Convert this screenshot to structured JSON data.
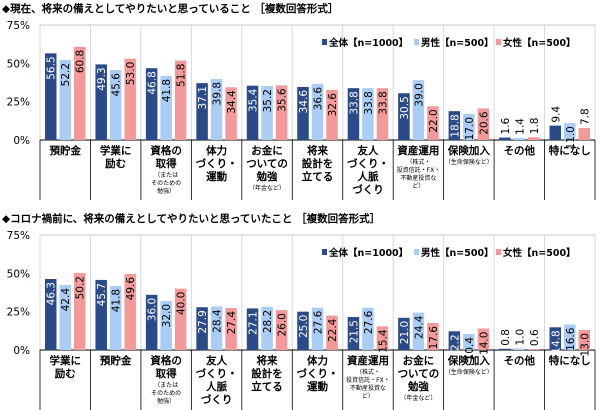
{
  "colors": {
    "全体": "#2a4a8a",
    "男性": "#a9cdf5",
    "女性": "#f4999a"
  },
  "chart_data": [
    {
      "type": "bar",
      "title": "◆現在、将来の備えとしてやりたいと思っていること ［複数回答形式］",
      "ylim": [
        0,
        75
      ],
      "yticks": [
        "0%",
        "25%",
        "50%",
        "75%"
      ],
      "legend_position": "top-right",
      "categories": [
        {
          "lines": [
            "預貯金"
          ],
          "note": []
        },
        {
          "lines": [
            "学業に",
            "励む"
          ],
          "note": []
        },
        {
          "lines": [
            "資格の",
            "取得"
          ],
          "note": [
            "（または",
            "そのための",
            "勉強）"
          ]
        },
        {
          "lines": [
            "体力",
            "づくり・",
            "運動"
          ],
          "note": []
        },
        {
          "lines": [
            "お金に",
            "ついての",
            "勉強"
          ],
          "note": [
            "（年金など）"
          ]
        },
        {
          "lines": [
            "将来",
            "設計を",
            "立てる"
          ],
          "note": []
        },
        {
          "lines": [
            "友人",
            "づくり・",
            "人脈",
            "づくり"
          ],
          "note": []
        },
        {
          "lines": [
            "資産運用"
          ],
          "note": [
            "（株式・",
            "投資信託・FX・",
            "不動産投資な",
            "ど）"
          ]
        },
        {
          "lines": [
            "保険加入"
          ],
          "note": [
            "（生命保険など）"
          ]
        },
        {
          "lines": [
            "その他"
          ],
          "note": []
        },
        {
          "lines": [
            "特になし"
          ],
          "note": []
        }
      ],
      "series": [
        {
          "name": "全体【n=1000】",
          "values": [
            56.5,
            49.3,
            46.8,
            37.1,
            35.4,
            34.6,
            33.8,
            30.5,
            18.8,
            1.6,
            9.4
          ]
        },
        {
          "name": "男性【n=500】",
          "values": [
            52.2,
            45.6,
            41.8,
            39.8,
            35.2,
            36.6,
            33.8,
            39.0,
            17.0,
            1.4,
            11.0
          ]
        },
        {
          "name": "女性【n=500】",
          "values": [
            60.8,
            53.0,
            51.8,
            34.4,
            35.6,
            32.6,
            33.8,
            22.0,
            20.6,
            1.8,
            7.8
          ]
        }
      ]
    },
    {
      "type": "bar",
      "title": "◆コロナ禍前に、将来の備えとしてやりたいと思っていたこと ［複数回答形式］",
      "ylim": [
        0,
        75
      ],
      "yticks": [
        "0%",
        "25%",
        "50%",
        "75%"
      ],
      "legend_position": "top-right",
      "categories": [
        {
          "lines": [
            "学業に",
            "励む"
          ],
          "note": []
        },
        {
          "lines": [
            "預貯金"
          ],
          "note": []
        },
        {
          "lines": [
            "資格の",
            "取得"
          ],
          "note": [
            "（または",
            "そのための",
            "勉強）"
          ]
        },
        {
          "lines": [
            "友人",
            "づくり・",
            "人脈",
            "づくり"
          ],
          "note": []
        },
        {
          "lines": [
            "将来",
            "設計を",
            "立てる"
          ],
          "note": []
        },
        {
          "lines": [
            "体力",
            "づくり・",
            "運動"
          ],
          "note": []
        },
        {
          "lines": [
            "資産運用"
          ],
          "note": [
            "（株式・",
            "投資信託・FX・",
            "不動産投資な",
            "ど）"
          ]
        },
        {
          "lines": [
            "お金に",
            "ついての",
            "勉強"
          ],
          "note": [
            "（年金など）"
          ]
        },
        {
          "lines": [
            "保険加入"
          ],
          "note": [
            "（生命保険など）"
          ]
        },
        {
          "lines": [
            "その他"
          ],
          "note": []
        },
        {
          "lines": [
            "特になし"
          ],
          "note": []
        }
      ],
      "series": [
        {
          "name": "全体【n=1000】",
          "values": [
            46.3,
            45.7,
            36.0,
            27.9,
            27.1,
            25.0,
            21.5,
            21.0,
            12.2,
            0.8,
            14.8
          ]
        },
        {
          "name": "男性【n=500】",
          "values": [
            42.4,
            41.8,
            32.0,
            28.4,
            28.2,
            27.6,
            27.6,
            24.4,
            10.4,
            1.0,
            16.6
          ]
        },
        {
          "name": "女性【n=500】",
          "values": [
            50.2,
            49.6,
            40.0,
            27.4,
            26.0,
            22.4,
            15.4,
            17.6,
            14.0,
            0.6,
            13.0
          ]
        }
      ]
    }
  ]
}
